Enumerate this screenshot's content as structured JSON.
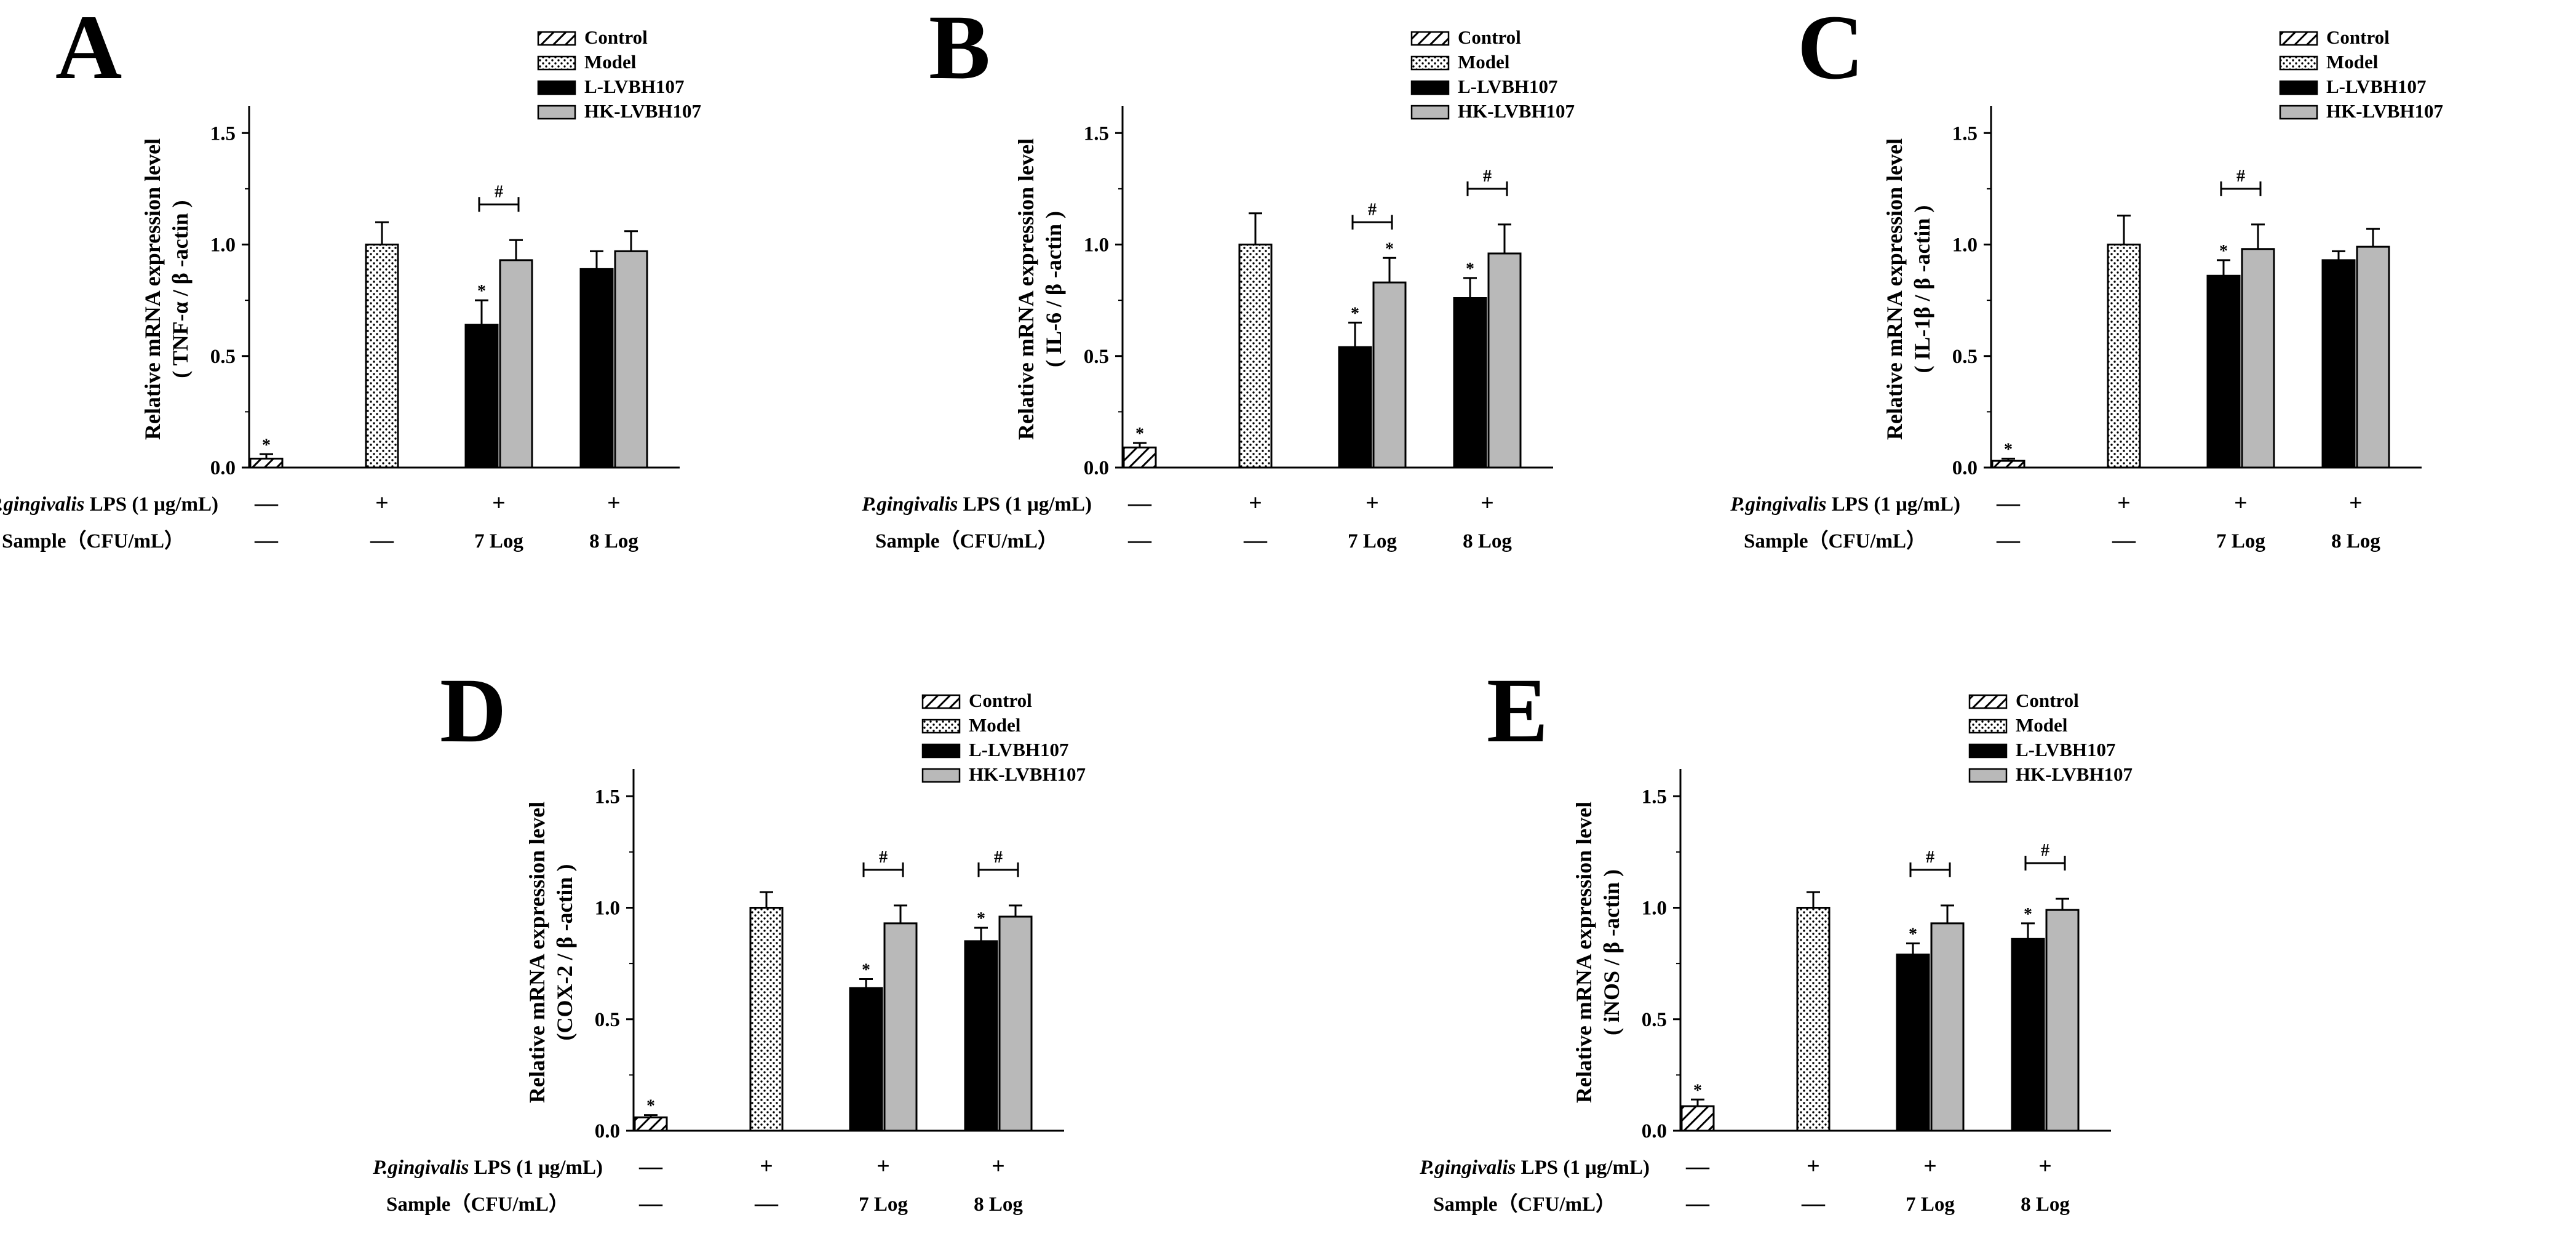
{
  "figure": {
    "legend": [
      {
        "key": "control",
        "label": "Control"
      },
      {
        "key": "model",
        "label": "Model"
      },
      {
        "key": "l",
        "label": "L-LVBH107"
      },
      {
        "key": "hk",
        "label": "HK-LVBH107"
      }
    ],
    "row_labels": {
      "lps_italic": "P.gingivalis",
      "lps_rest": " LPS (1 μg/mL)",
      "sample": "Sample（CFU/mL）"
    },
    "lps_symbols": [
      "—",
      "+",
      "+",
      "+"
    ],
    "sample_symbols": [
      "—",
      "—",
      "7 Log",
      "8 Log"
    ],
    "ylabel_line1": "Relative mRNA expression level",
    "star_text": "*",
    "hash_text": "#",
    "colors": {
      "control": "#ffffff",
      "model": "#ffffff",
      "l": "#000000",
      "hk": "#b9b9b9"
    }
  },
  "chart_data": [
    {
      "type": "bar",
      "panel": "A",
      "title": "A",
      "ylabel": "Relative mRNA expression level",
      "ylabel2": "( TNF-α / β -actin )",
      "ylim": [
        0,
        1.6
      ],
      "yticks": [
        "0.0",
        "0.5",
        "1.0",
        "1.5"
      ],
      "groups": [
        "Control",
        "Model",
        "7 Log",
        "8 Log"
      ],
      "series": [
        {
          "name": "Control",
          "values": [
            0.04
          ],
          "errors": [
            0.02
          ],
          "sig": [
            true
          ]
        },
        {
          "name": "Model",
          "values": [
            1.0
          ],
          "errors": [
            0.1
          ],
          "sig": [
            false
          ]
        },
        {
          "name": "L-LVBH107",
          "values": [
            0.64,
            0.89
          ],
          "errors": [
            0.11,
            0.08
          ],
          "sig": [
            true,
            false
          ]
        },
        {
          "name": "HK-LVBH107",
          "values": [
            0.93,
            0.97
          ],
          "errors": [
            0.09,
            0.09
          ],
          "sig": [
            false,
            false
          ]
        }
      ],
      "hash_brackets": [
        "7 Log"
      ]
    },
    {
      "type": "bar",
      "panel": "B",
      "title": "B",
      "ylabel": "Relative mRNA expression level",
      "ylabel2": "( IL-6 / β -actin )",
      "ylim": [
        0,
        1.6
      ],
      "yticks": [
        "0.0",
        "0.5",
        "1.0",
        "1.5"
      ],
      "groups": [
        "Control",
        "Model",
        "7 Log",
        "8 Log"
      ],
      "series": [
        {
          "name": "Control",
          "values": [
            0.09
          ],
          "errors": [
            0.02
          ],
          "sig": [
            true
          ]
        },
        {
          "name": "Model",
          "values": [
            1.0
          ],
          "errors": [
            0.14
          ],
          "sig": [
            false
          ]
        },
        {
          "name": "L-LVBH107",
          "values": [
            0.54,
            0.76
          ],
          "errors": [
            0.11,
            0.09
          ],
          "sig": [
            true,
            true
          ]
        },
        {
          "name": "HK-LVBH107",
          "values": [
            0.83,
            0.96
          ],
          "errors": [
            0.11,
            0.13
          ],
          "sig": [
            true,
            false
          ]
        }
      ],
      "hash_brackets": [
        "7 Log",
        "8 Log"
      ]
    },
    {
      "type": "bar",
      "panel": "C",
      "title": "C",
      "ylabel": "Relative mRNA expression level",
      "ylabel2": "( IL-1β / β -actin )",
      "ylim": [
        0,
        1.6
      ],
      "yticks": [
        "0.0",
        "0.5",
        "1.0",
        "1.5"
      ],
      "groups": [
        "Control",
        "Model",
        "7 Log",
        "8 Log"
      ],
      "series": [
        {
          "name": "Control",
          "values": [
            0.03
          ],
          "errors": [
            0.01
          ],
          "sig": [
            true
          ]
        },
        {
          "name": "Model",
          "values": [
            1.0
          ],
          "errors": [
            0.13
          ],
          "sig": [
            false
          ]
        },
        {
          "name": "L-LVBH107",
          "values": [
            0.86,
            0.93
          ],
          "errors": [
            0.07,
            0.04
          ],
          "sig": [
            true,
            false
          ]
        },
        {
          "name": "HK-LVBH107",
          "values": [
            0.98,
            0.99
          ],
          "errors": [
            0.11,
            0.08
          ],
          "sig": [
            false,
            false
          ]
        }
      ],
      "hash_brackets": [
        "7 Log"
      ]
    },
    {
      "type": "bar",
      "panel": "D",
      "title": "D",
      "ylabel": "Relative mRNA expression level",
      "ylabel2": "(COX-2 / β -actin )",
      "ylim": [
        0,
        1.6
      ],
      "yticks": [
        "0.0",
        "0.5",
        "1.0",
        "1.5"
      ],
      "groups": [
        "Control",
        "Model",
        "7 Log",
        "8 Log"
      ],
      "series": [
        {
          "name": "Control",
          "values": [
            0.06
          ],
          "errors": [
            0.01
          ],
          "sig": [
            true
          ]
        },
        {
          "name": "Model",
          "values": [
            1.0
          ],
          "errors": [
            0.07
          ],
          "sig": [
            false
          ]
        },
        {
          "name": "L-LVBH107",
          "values": [
            0.64,
            0.85
          ],
          "errors": [
            0.04,
            0.06
          ],
          "sig": [
            true,
            true
          ]
        },
        {
          "name": "HK-LVBH107",
          "values": [
            0.93,
            0.96
          ],
          "errors": [
            0.08,
            0.05
          ],
          "sig": [
            false,
            false
          ]
        }
      ],
      "hash_brackets": [
        "7 Log",
        "8 Log"
      ]
    },
    {
      "type": "bar",
      "panel": "E",
      "title": "E",
      "ylabel": "Relative mRNA expression level",
      "ylabel2": "( iNOS / β -actin )",
      "ylim": [
        0,
        1.6
      ],
      "yticks": [
        "0.0",
        "0.5",
        "1.0",
        "1.5"
      ],
      "groups": [
        "Control",
        "Model",
        "7 Log",
        "8 Log"
      ],
      "series": [
        {
          "name": "Control",
          "values": [
            0.11
          ],
          "errors": [
            0.03
          ],
          "sig": [
            true
          ]
        },
        {
          "name": "Model",
          "values": [
            1.0
          ],
          "errors": [
            0.07
          ],
          "sig": [
            false
          ]
        },
        {
          "name": "L-LVBH107",
          "values": [
            0.79,
            0.86
          ],
          "errors": [
            0.05,
            0.07
          ],
          "sig": [
            true,
            true
          ]
        },
        {
          "name": "HK-LVBH107",
          "values": [
            0.93,
            0.99
          ],
          "errors": [
            0.08,
            0.05
          ],
          "sig": [
            false,
            false
          ]
        }
      ],
      "hash_brackets": [
        "7 Log",
        "8 Log"
      ]
    }
  ]
}
